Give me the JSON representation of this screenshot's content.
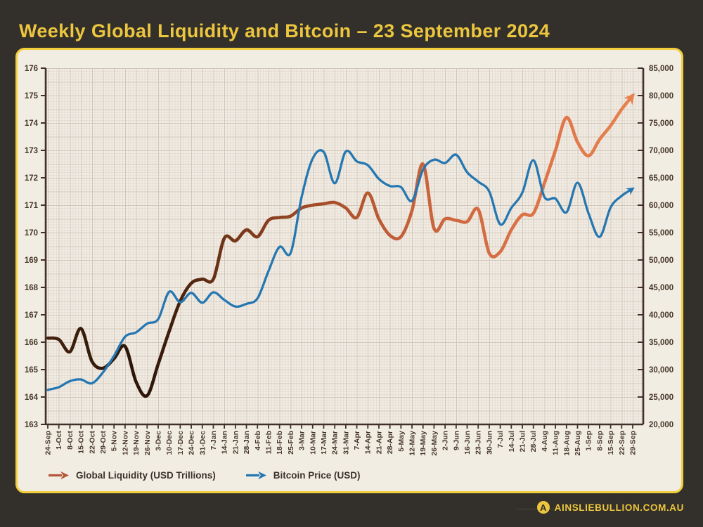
{
  "title": "Weekly Global Liquidity and Bitcoin – 23 September 2024",
  "colors": {
    "background": "#33302b",
    "card_bg": "#f2ede2",
    "card_border": "#f2ce3d",
    "title": "#ecc63e",
    "axis": "#41302a",
    "tick_label": "#46362a",
    "grid_minor": "#e6ddd6",
    "grid_major": "#d2c6bc",
    "bitcoin": "#2577b1",
    "liquidity_end": "#e8814f",
    "legend_text": "#3b322c",
    "brand": "#ecc63e"
  },
  "chart_data": {
    "type": "line",
    "title": "Weekly Global Liquidity and Bitcoin – 23 September 2024",
    "grid": true,
    "legend_position": "bottom-left",
    "categories": [
      "24-Sep",
      "1-Oct",
      "8-Oct",
      "15-Oct",
      "22-Oct",
      "29-Oct",
      "5-Nov",
      "12-Nov",
      "19-Nov",
      "26-Nov",
      "3-Dec",
      "10-Dec",
      "17-Dec",
      "24-Dec",
      "31-Dec",
      "7-Jan",
      "14-Jan",
      "21-Jan",
      "28-Jan",
      "4-Feb",
      "11-Feb",
      "18-Feb",
      "25-Feb",
      "3-Mar",
      "10-Mar",
      "17-Mar",
      "24-Mar",
      "31-Mar",
      "7-Apr",
      "14-Apr",
      "21-Apr",
      "28-Apr",
      "5-May",
      "12-May",
      "19-May",
      "26-May",
      "2-Jun",
      "9-Jun",
      "16-Jun",
      "23-Jun",
      "30-Jun",
      "7-Jul",
      "14-Jul",
      "21-Jul",
      "28-Jul",
      "4-Aug",
      "11-Aug",
      "18-Aug",
      "25-Aug",
      "1-Sep",
      "8-Sep",
      "15-Sep",
      "22-Sep",
      "29-Sep"
    ],
    "series": [
      {
        "name": "Global Liquidity (USD Trillions)",
        "axis": "left",
        "style": "gradient-brown-to-orange",
        "arrow_end": true,
        "values": [
          166.15,
          166.1,
          165.65,
          166.5,
          165.3,
          165.05,
          165.4,
          165.85,
          164.55,
          164.05,
          165.2,
          166.4,
          167.5,
          168.15,
          168.3,
          168.3,
          169.8,
          169.7,
          170.1,
          169.85,
          170.45,
          170.55,
          170.6,
          170.9,
          171.0,
          171.05,
          171.1,
          170.9,
          170.55,
          171.45,
          170.5,
          169.9,
          169.85,
          170.8,
          172.5,
          170.15,
          170.5,
          170.45,
          170.4,
          170.85,
          169.25,
          169.3,
          170.1,
          170.65,
          170.7,
          171.8,
          173.0,
          174.2,
          173.3,
          172.8,
          173.4,
          173.9,
          174.5,
          175.0
        ]
      },
      {
        "name": "Bitcoin Price (USD)",
        "axis": "right",
        "style": "solid-blue",
        "arrow_end": true,
        "values": [
          26300,
          26800,
          27900,
          28200,
          27500,
          29500,
          32500,
          36000,
          36800,
          38400,
          39200,
          44200,
          42300,
          44000,
          42200,
          44100,
          42700,
          41500,
          42000,
          43000,
          48000,
          52400,
          51300,
          61500,
          68500,
          69700,
          64000,
          69800,
          68000,
          67300,
          64800,
          63500,
          63300,
          60800,
          66500,
          68300,
          67700,
          69200,
          66000,
          64300,
          62500,
          56500,
          59500,
          62300,
          68200,
          61500,
          61200,
          58700,
          64100,
          58500,
          54200,
          59600,
          61700,
          63000
        ]
      }
    ],
    "left_axis": {
      "min": 163,
      "max": 176,
      "tick_step": 1,
      "labels": [
        "176",
        "175",
        "174",
        "173",
        "172",
        "171",
        "170",
        "169",
        "168",
        "167",
        "166",
        "165",
        "164",
        "163"
      ]
    },
    "right_axis": {
      "min": 20000,
      "max": 85000,
      "tick_step": 5000,
      "labels": [
        "85,000",
        "80,000",
        "75,000",
        "70,000",
        "65,000",
        "60,000",
        "55,000",
        "50,000",
        "45,000",
        "40,000",
        "35,000",
        "30,000",
        "25,000",
        "20,000"
      ]
    },
    "liquidity_gradient": [
      {
        "offset": 0,
        "color": "#45220f"
      },
      {
        "offset": 0.09,
        "color": "#331a0b"
      },
      {
        "offset": 0.17,
        "color": "#2b1507"
      },
      {
        "offset": 0.3,
        "color": "#6e3317"
      },
      {
        "offset": 0.45,
        "color": "#a04b27"
      },
      {
        "offset": 0.6,
        "color": "#c25f38"
      },
      {
        "offset": 0.78,
        "color": "#d96f45"
      },
      {
        "offset": 1,
        "color": "#e8814f"
      }
    ]
  },
  "legend": {
    "items": [
      {
        "label": "Global Liquidity (USD Trillions)",
        "color": "#b3583a",
        "icon": "arrow-right-icon"
      },
      {
        "label": "Bitcoin Price (USD)",
        "color": "#2577b1",
        "icon": "arrow-right-icon"
      }
    ]
  },
  "footer": {
    "brand": "AINSLIEBULLION.COM.AU",
    "logo_letter": "A"
  }
}
